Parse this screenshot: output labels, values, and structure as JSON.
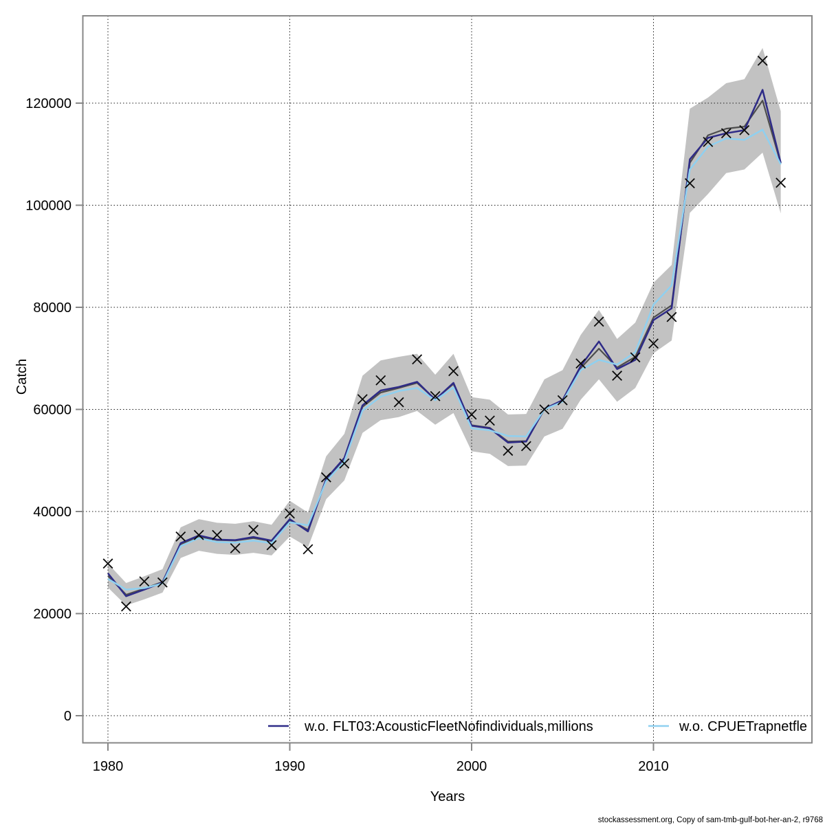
{
  "page": {
    "footer": "stockassessment.org, Copy of sam-tmb-gulf-bot-her-an-2, r9768"
  },
  "chart_data": {
    "type": "line",
    "title": "",
    "xlabel": "Years",
    "ylabel": "Catch",
    "grid": true,
    "legend_position": "bottom-inside",
    "xticks": [
      1980,
      1990,
      2000,
      2010
    ],
    "yticks": [
      0,
      20000,
      40000,
      60000,
      80000,
      100000,
      120000
    ],
    "ylim": [
      -5300,
      137000
    ],
    "xlim": [
      1978.6,
      2018.8
    ],
    "x": [
      1980,
      1981,
      1982,
      1983,
      1984,
      1985,
      1986,
      1987,
      1988,
      1989,
      1990,
      1991,
      1992,
      1993,
      1994,
      1995,
      1996,
      1997,
      1998,
      1999,
      2000,
      2001,
      2002,
      2003,
      2004,
      2005,
      2006,
      2007,
      2008,
      2009,
      2010,
      2011,
      2012,
      2013,
      2014,
      2015,
      2016,
      2017
    ],
    "band": {
      "name": "confidence-band",
      "color": "#c2c2c2",
      "lower": [
        25100,
        21600,
        22800,
        24100,
        30900,
        32300,
        31700,
        31500,
        31900,
        31400,
        35100,
        33000,
        42400,
        46100,
        55400,
        57900,
        58500,
        59700,
        57000,
        59300,
        51800,
        51300,
        48900,
        49000,
        54700,
        56200,
        61900,
        65900,
        61500,
        64200,
        71000,
        73500,
        98500,
        102200,
        106300,
        107000,
        110300,
        98400
      ],
      "upper": [
        29800,
        26000,
        27300,
        28700,
        36900,
        38500,
        37800,
        37600,
        38100,
        37400,
        42100,
        39800,
        50800,
        55200,
        66600,
        69600,
        70300,
        70900,
        66800,
        70900,
        62400,
        61900,
        59000,
        59100,
        65900,
        67700,
        74600,
        79500,
        73800,
        77000,
        84800,
        88300,
        118900,
        121100,
        123900,
        124700,
        130800,
        118400
      ]
    },
    "series": [
      {
        "name": "base-fit",
        "color": "#4d4d4d",
        "in_legend": false,
        "values": [
          27400,
          23700,
          24900,
          26200,
          33600,
          35100,
          34400,
          34300,
          34800,
          34200,
          38300,
          36400,
          46200,
          50300,
          60500,
          63300,
          64200,
          65200,
          62000,
          65000,
          56900,
          56400,
          53700,
          53800,
          60000,
          61600,
          68100,
          71900,
          68200,
          70300,
          78000,
          80400,
          108300,
          113700,
          115000,
          115400,
          120500,
          108200
        ]
      },
      {
        "name": "w.o. FLT03:AcousticFleetNofindividuals,millions",
        "color": "#2e2b87",
        "in_legend": true,
        "values": [
          27900,
          23400,
          24700,
          26100,
          33800,
          35300,
          34500,
          34400,
          35000,
          34300,
          38500,
          36100,
          46400,
          50500,
          60800,
          63700,
          64400,
          65400,
          61900,
          65200,
          56800,
          56300,
          53500,
          53700,
          60100,
          61800,
          68500,
          73300,
          67900,
          69700,
          77500,
          79800,
          109000,
          113200,
          114100,
          114700,
          122600,
          108300
        ]
      },
      {
        "name": "w.o. CPUETrapnetfle",
        "color": "#8fd0f0",
        "in_legend": true,
        "values": [
          26800,
          24700,
          25000,
          25900,
          33200,
          34800,
          34000,
          33900,
          34300,
          33800,
          37900,
          37300,
          45900,
          49800,
          59800,
          62500,
          63600,
          64200,
          61800,
          64300,
          56300,
          55900,
          54800,
          54700,
          60000,
          61500,
          67700,
          69700,
          68800,
          71200,
          80500,
          84300,
          107000,
          111500,
          113100,
          112800,
          114800,
          108000
        ]
      }
    ],
    "observations": {
      "name": "observed-catch",
      "marker": "x",
      "color": "#0a0a0a",
      "values": [
        29800,
        21400,
        26300,
        26100,
        35100,
        35400,
        35400,
        32800,
        36400,
        33400,
        39600,
        32600,
        46700,
        49400,
        62000,
        65700,
        61400,
        69800,
        62600,
        67500,
        59000,
        57800,
        51900,
        52800,
        60000,
        61800,
        69000,
        77200,
        66600,
        70200,
        72900,
        78100,
        104300,
        112400,
        114100,
        114700,
        128300,
        104400
      ]
    }
  }
}
